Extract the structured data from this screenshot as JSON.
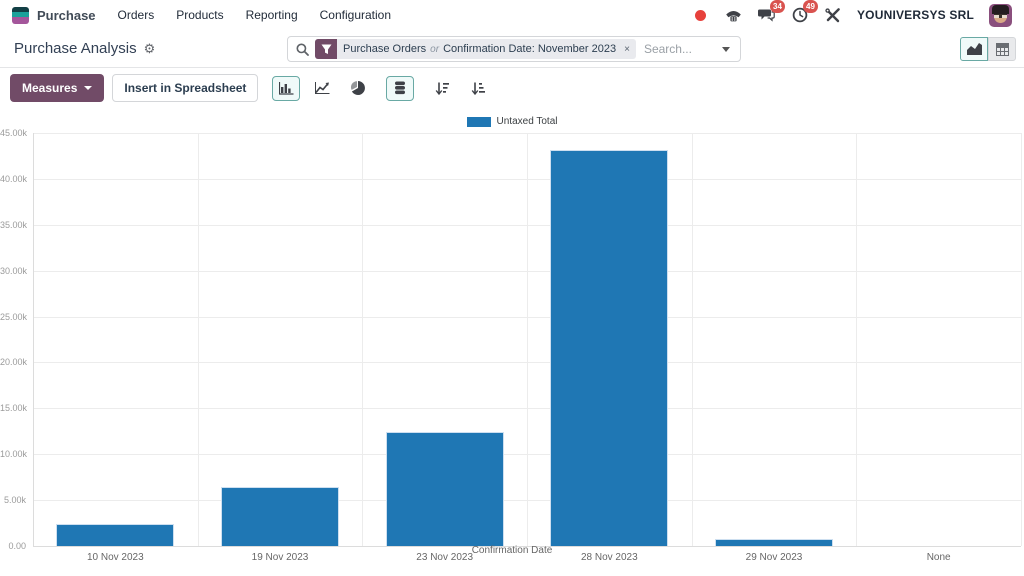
{
  "app": {
    "name": "Purchase",
    "menus": [
      "Orders",
      "Products",
      "Reporting",
      "Configuration"
    ],
    "company": "YOUNIVERSYS SRL",
    "messages_badge": "34",
    "activities_badge": "49"
  },
  "control_panel": {
    "title": "Purchase Analysis",
    "search": {
      "facet_parts": [
        "Purchase Orders",
        "or",
        "Confirmation Date: November 2023"
      ],
      "facet_remove": "×",
      "placeholder": "Search..."
    }
  },
  "toolbar": {
    "measures_label": "Measures",
    "insert_label": "Insert in Spreadsheet"
  },
  "chart_data": {
    "type": "bar",
    "legend": [
      "Untaxed Total"
    ],
    "categories": [
      "10 Nov 2023",
      "19 Nov 2023",
      "23 Nov 2023",
      "28 Nov 2023",
      "29 Nov 2023",
      "None"
    ],
    "values": [
      2400,
      6400,
      12400,
      43200,
      750,
      0
    ],
    "xlabel": "Confirmation Date",
    "ylabel": "",
    "ylim": [
      0,
      45000
    ],
    "ytick_step": 5000,
    "ytick_labels": [
      "0.00",
      "5.00k",
      "10.00k",
      "15.00k",
      "20.00k",
      "25.00k",
      "30.00k",
      "35.00k",
      "40.00k",
      "45.00k"
    ],
    "grid": true,
    "legend_position": "top",
    "bar_color": "#1f77b4"
  },
  "colors": {
    "accent_plum": "#714b67",
    "active_teal": "#69a9a4",
    "bar_blue": "#1f77b4",
    "badge_red": "#d9534f",
    "status_dot_red": "#e7413c"
  }
}
